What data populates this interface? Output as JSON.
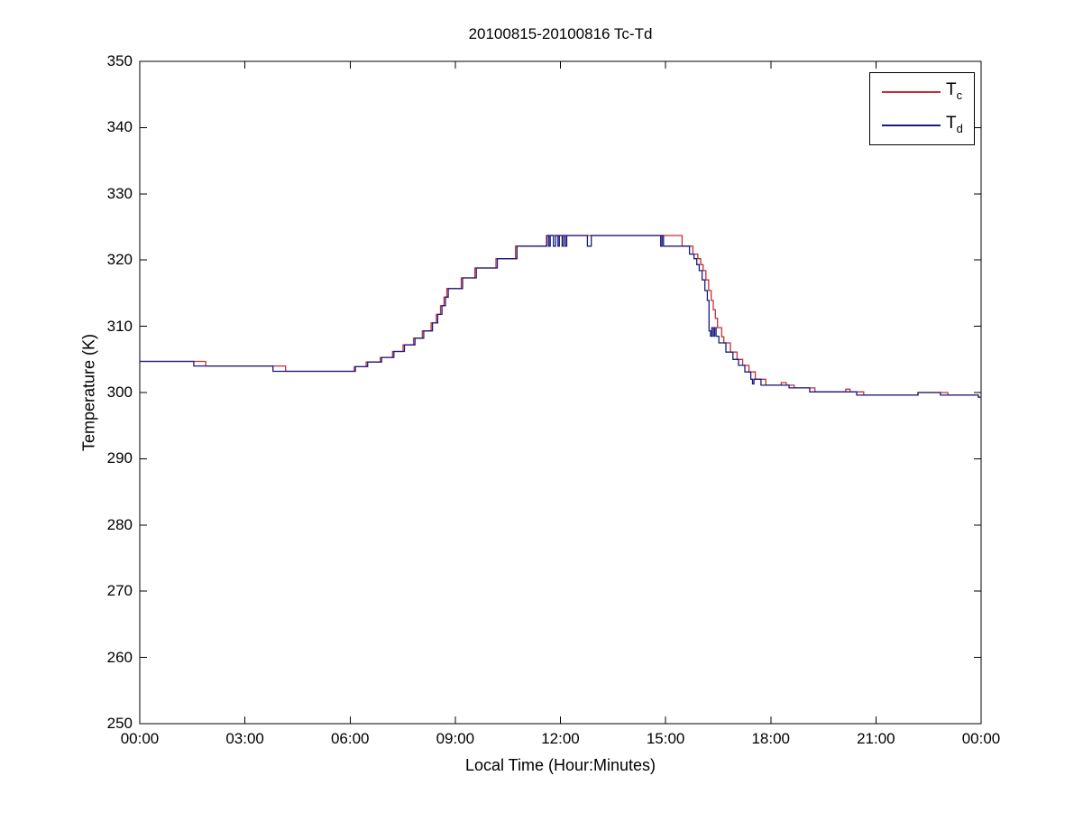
{
  "figure": {
    "background": "#ffffff"
  },
  "chart_data": {
    "type": "line",
    "title": "20100815-20100816 Tc-Td",
    "xlabel": "Local Time (Hour:Minutes)",
    "ylabel": "Temperature (K)",
    "xlim": [
      0,
      24
    ],
    "ylim": [
      250,
      350
    ],
    "grid": false,
    "frame_color": "#000000",
    "step_mode": "post",
    "xticks": {
      "values": [
        0,
        3,
        6,
        9,
        12,
        15,
        18,
        21,
        24
      ],
      "labels": [
        "00:00",
        "03:00",
        "06:00",
        "09:00",
        "12:00",
        "15:00",
        "18:00",
        "21:00",
        "00:00"
      ]
    },
    "yticks": {
      "values": [
        250,
        260,
        270,
        280,
        290,
        300,
        310,
        320,
        330,
        340,
        350
      ],
      "labels": [
        "250",
        "260",
        "270",
        "280",
        "290",
        "300",
        "310",
        "320",
        "330",
        "340",
        "350"
      ]
    },
    "legend": {
      "position": "top-right",
      "items": [
        {
          "base": "T",
          "sub": "c",
          "series": "Tc",
          "color": "#c62f38"
        },
        {
          "base": "T",
          "sub": "d",
          "series": "Td",
          "color": "#1b1b7e"
        }
      ]
    },
    "series": [
      {
        "name": "Tc",
        "color": "#c62f38",
        "points": [
          [
            0.0,
            304.7
          ],
          [
            1.88,
            304.0
          ],
          [
            4.16,
            303.2
          ],
          [
            6.12,
            303.9
          ],
          [
            6.46,
            304.6
          ],
          [
            6.86,
            305.3
          ],
          [
            7.21,
            306.2
          ],
          [
            7.51,
            307.2
          ],
          [
            7.81,
            308.2
          ],
          [
            8.06,
            309.3
          ],
          [
            8.31,
            310.5
          ],
          [
            8.46,
            311.8
          ],
          [
            8.58,
            313.1
          ],
          [
            8.68,
            314.4
          ],
          [
            8.76,
            315.7
          ],
          [
            9.17,
            317.3
          ],
          [
            9.56,
            318.8
          ],
          [
            10.16,
            320.2
          ],
          [
            10.72,
            322.1
          ],
          [
            11.6,
            323.7
          ],
          [
            15.47,
            322.1
          ],
          [
            15.78,
            320.9
          ],
          [
            15.92,
            320.2
          ],
          [
            16.0,
            319.3
          ],
          [
            16.07,
            318.4
          ],
          [
            16.15,
            317.0
          ],
          [
            16.23,
            315.4
          ],
          [
            16.3,
            313.9
          ],
          [
            16.36,
            312.5
          ],
          [
            16.42,
            311.2
          ],
          [
            16.48,
            309.8
          ],
          [
            16.6,
            308.4
          ],
          [
            16.66,
            307.5
          ],
          [
            16.85,
            306.1
          ],
          [
            17.04,
            305.0
          ],
          [
            17.2,
            304.1
          ],
          [
            17.38,
            303.1
          ],
          [
            17.56,
            302.0
          ],
          [
            17.86,
            301.1
          ],
          [
            18.3,
            301.5
          ],
          [
            18.44,
            301.1
          ],
          [
            18.67,
            300.7
          ],
          [
            19.26,
            300.1
          ],
          [
            20.14,
            300.5
          ],
          [
            20.26,
            300.1
          ],
          [
            20.65,
            299.6
          ],
          [
            22.2,
            300.0
          ],
          [
            23.05,
            299.6
          ],
          [
            23.92,
            299.3
          ],
          [
            24.0,
            299.3
          ]
        ]
      },
      {
        "name": "Td",
        "color": "#1b1b7e",
        "points": [
          [
            0.0,
            304.7
          ],
          [
            1.54,
            304.0
          ],
          [
            3.8,
            303.2
          ],
          [
            6.15,
            303.9
          ],
          [
            6.5,
            304.6
          ],
          [
            6.9,
            305.3
          ],
          [
            7.25,
            306.2
          ],
          [
            7.55,
            307.2
          ],
          [
            7.85,
            308.2
          ],
          [
            8.1,
            309.3
          ],
          [
            8.35,
            310.5
          ],
          [
            8.5,
            311.8
          ],
          [
            8.62,
            313.1
          ],
          [
            8.72,
            314.4
          ],
          [
            8.8,
            315.7
          ],
          [
            9.21,
            317.3
          ],
          [
            9.6,
            318.8
          ],
          [
            10.2,
            320.2
          ],
          [
            10.76,
            322.1
          ],
          [
            11.62,
            323.7
          ],
          [
            11.67,
            322.1
          ],
          [
            11.71,
            323.7
          ],
          [
            11.8,
            322.1
          ],
          [
            11.86,
            323.7
          ],
          [
            11.93,
            322.1
          ],
          [
            11.97,
            323.7
          ],
          [
            12.05,
            322.1
          ],
          [
            12.09,
            323.7
          ],
          [
            12.14,
            322.1
          ],
          [
            12.18,
            323.7
          ],
          [
            12.77,
            322.1
          ],
          [
            12.88,
            323.7
          ],
          [
            14.86,
            322.1
          ],
          [
            14.9,
            323.7
          ],
          [
            14.94,
            322.1
          ],
          [
            15.68,
            320.9
          ],
          [
            15.81,
            320.2
          ],
          [
            15.89,
            319.3
          ],
          [
            15.96,
            318.4
          ],
          [
            16.04,
            317.0
          ],
          [
            16.12,
            315.4
          ],
          [
            16.19,
            313.9
          ],
          [
            16.24,
            309.3
          ],
          [
            16.28,
            308.5
          ],
          [
            16.32,
            309.8
          ],
          [
            16.36,
            308.5
          ],
          [
            16.4,
            309.8
          ],
          [
            16.44,
            308.5
          ],
          [
            16.52,
            307.5
          ],
          [
            16.72,
            306.1
          ],
          [
            16.92,
            305.0
          ],
          [
            17.08,
            304.1
          ],
          [
            17.26,
            303.1
          ],
          [
            17.43,
            302.0
          ],
          [
            17.48,
            301.3
          ],
          [
            17.52,
            302.0
          ],
          [
            17.72,
            301.1
          ],
          [
            18.52,
            300.7
          ],
          [
            19.11,
            300.1
          ],
          [
            20.45,
            299.6
          ],
          [
            22.2,
            300.0
          ],
          [
            22.84,
            299.6
          ],
          [
            23.92,
            299.3
          ],
          [
            24.0,
            299.3
          ]
        ]
      }
    ]
  }
}
